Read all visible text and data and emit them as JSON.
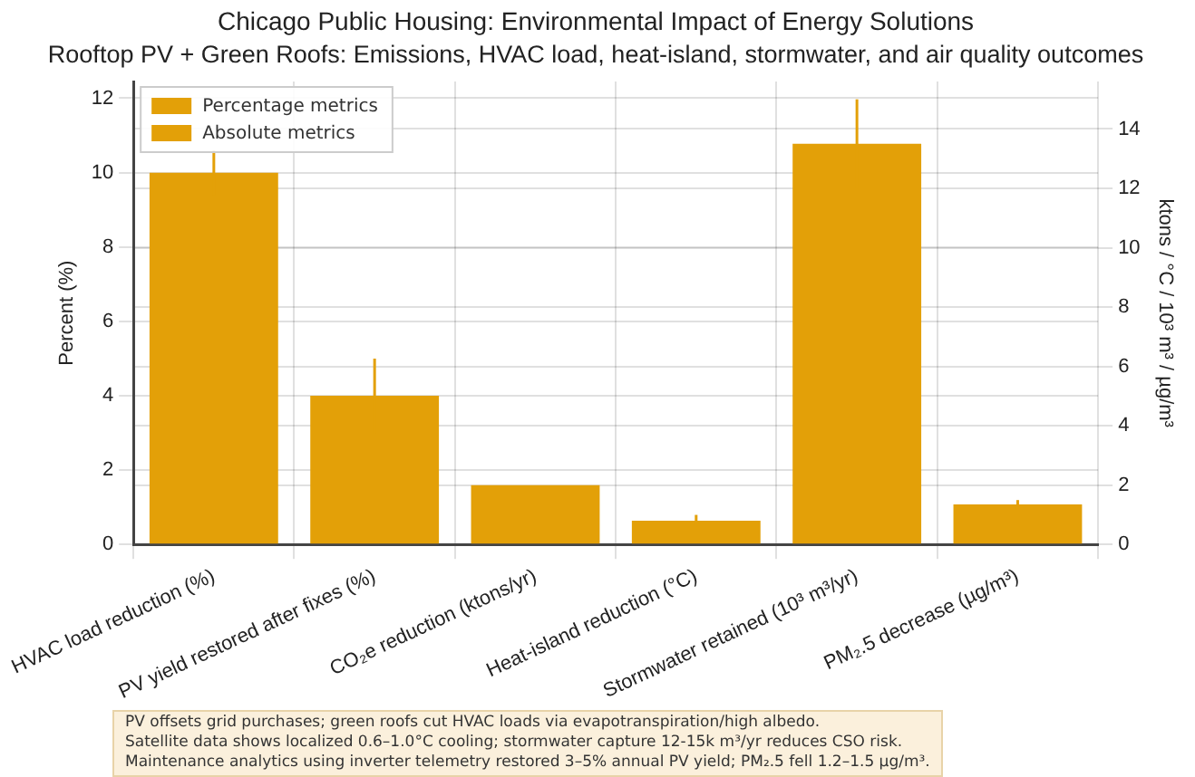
{
  "chart_data": {
    "type": "bar",
    "title": "Chicago Public Housing: Environmental Impact of Energy Solutions",
    "subtitle": "Rooftop PV + Green Roofs: Emissions, HVAC load, heat-island, stormwater, and air quality outcomes",
    "categories": [
      "HVAC load reduction (%)",
      "PV yield restored after fixes (%)",
      "CO₂e reduction (ktons/yr)",
      "Heat-island reduction (°C)",
      "Stormwater retained (10³ m³/yr)",
      "PM₂.5 decrease (µg/m³)"
    ],
    "series": [
      {
        "name": "Percentage metrics",
        "color": "#e3a008",
        "values": [
          10,
          4,
          null,
          null,
          null,
          null
        ],
        "errors": [
          0.6,
          1,
          null,
          null,
          null,
          null
        ]
      },
      {
        "name": "Absolute metrics",
        "color": "#e3a008",
        "axis": "y2",
        "values": [
          null,
          null,
          2,
          0.8,
          13.5,
          1.35
        ],
        "errors": [
          null,
          null,
          null,
          0.2,
          1.5,
          0.15
        ]
      }
    ],
    "ylabel": "Percent (%)",
    "y2label": "ktons / °C / 10³ m³ / µg/m³",
    "ylim": [
      0,
      12.45
    ],
    "yticks": [
      0,
      2,
      4,
      6,
      8,
      10,
      12
    ],
    "y2lim": [
      0,
      15.6
    ],
    "y2ticks": [
      0,
      2,
      4,
      6,
      8,
      10,
      12,
      14
    ],
    "grid": true,
    "legend": "top left",
    "annotations": [
      "PV offsets grid purchases; green roofs cut HVAC loads via evapotranspiration/high albedo.\nSatellite data shows localized 0.6–1.0°C cooling; stormwater capture 12-15k m³/yr reduces CSO risk.\nMaintenance analytics using inverter telemetry restored 3–5% annual PV yield; PM₂.5 fell 1.2–1.5 µg/m³."
    ]
  }
}
